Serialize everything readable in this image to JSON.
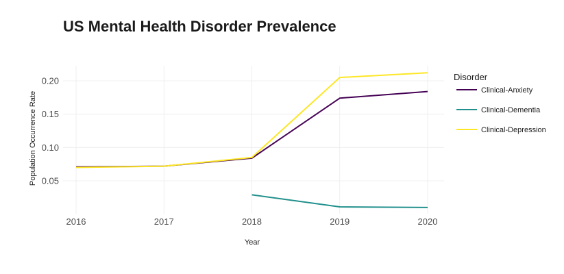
{
  "chart_data": {
    "type": "line",
    "title": "US Mental Health Disorder Prevalence",
    "xlabel": "Year",
    "ylabel": "Population Occurrence Rate",
    "x": [
      2016,
      2017,
      2018,
      2019,
      2020
    ],
    "xticks": [
      "2016",
      "2017",
      "2018",
      "2019",
      "2020"
    ],
    "yticks": [
      "0.05",
      "0.10",
      "0.15",
      "0.20"
    ],
    "ylim": [
      0.01,
      0.222
    ],
    "grid": true,
    "legend_title": "Disorder",
    "legend_position": "right",
    "series": [
      {
        "name": "Clinical-Anxiety",
        "color": "#440154",
        "x": [
          2016,
          2017,
          2018,
          2019,
          2020
        ],
        "values": [
          0.071,
          0.072,
          0.084,
          0.174,
          0.184
        ]
      },
      {
        "name": "Clinical-Dementia",
        "color": "#21908C",
        "x": [
          2018,
          2019,
          2020
        ],
        "values": [
          0.029,
          0.011,
          0.01
        ]
      },
      {
        "name": "Clinical-Depression",
        "color": "#FDE725",
        "x": [
          2016,
          2017,
          2018,
          2019,
          2020
        ],
        "values": [
          0.07,
          0.072,
          0.085,
          0.205,
          0.212
        ]
      }
    ]
  }
}
